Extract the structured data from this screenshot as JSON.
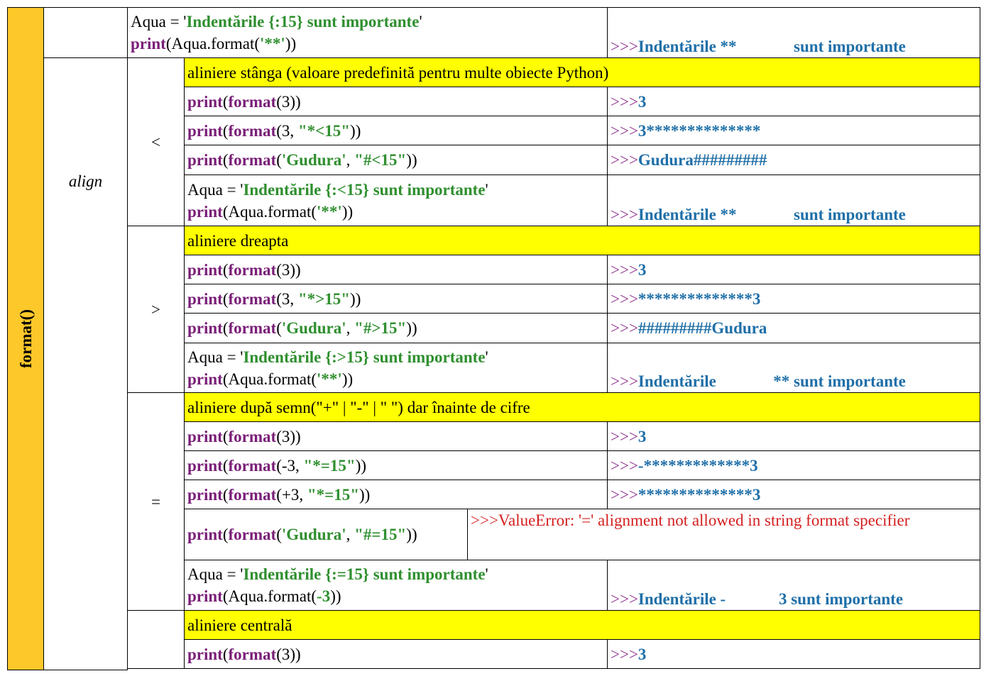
{
  "sidebar": "format()",
  "param": "align",
  "header_row": {
    "code": [
      [
        [
          "Aqua = '",
          "#000000",
          false
        ],
        [
          "Indentările {:15} sunt importante",
          "#2f8f2f",
          true
        ],
        [
          "'",
          "#000000",
          false
        ]
      ],
      [
        [
          "print",
          "#7a1e78",
          true
        ],
        [
          "(Aqua.format(",
          "#000000",
          false
        ],
        [
          "'**'",
          "#2f8f2f",
          true
        ],
        [
          "))",
          "#000000",
          false
        ]
      ]
    ],
    "output": [
      [
        [
          ">>>",
          "#8b2a8b",
          false
        ],
        [
          "Indentările **              sunt importante",
          "#1f6fa8",
          true
        ]
      ]
    ]
  },
  "groups": [
    {
      "symbol": "<",
      "caption": "aliniere stânga (valoare predefinită pentru multe obiecte Python)",
      "rows": [
        {
          "code": [
            [
              [
                "print",
                "#7a1e78",
                true
              ],
              [
                "(",
                "#000000",
                false
              ],
              [
                "format",
                "#7a1e78",
                true
              ],
              [
                "(3))",
                "#000000",
                false
              ]
            ]
          ],
          "output": [
            [
              [
                ">>>",
                "#8b2a8b",
                false
              ],
              [
                "3",
                "#1f6fa8",
                true
              ]
            ]
          ]
        },
        {
          "code": [
            [
              [
                "print",
                "#7a1e78",
                true
              ],
              [
                "(",
                "#000000",
                false
              ],
              [
                "format",
                "#7a1e78",
                true
              ],
              [
                "(3, ",
                "#000000",
                false
              ],
              [
                "\"*<15\"",
                "#2f8f2f",
                true
              ],
              [
                "))",
                "#000000",
                false
              ]
            ]
          ],
          "output": [
            [
              [
                ">>>",
                "#8b2a8b",
                false
              ],
              [
                "3**************",
                "#1f6fa8",
                true
              ]
            ]
          ]
        },
        {
          "code": [
            [
              [
                "print",
                "#7a1e78",
                true
              ],
              [
                "(",
                "#000000",
                false
              ],
              [
                "format",
                "#7a1e78",
                true
              ],
              [
                "(",
                "#000000",
                false
              ],
              [
                "'Gudura'",
                "#2f8f2f",
                true
              ],
              [
                ", ",
                "#000000",
                false
              ],
              [
                "\"#<15\"",
                "#2f8f2f",
                true
              ],
              [
                "))",
                "#000000",
                false
              ]
            ]
          ],
          "output": [
            [
              [
                ">>>",
                "#8b2a8b",
                false
              ],
              [
                "Gudura#########",
                "#1f6fa8",
                true
              ]
            ]
          ]
        },
        {
          "code": [
            [
              [
                "Aqua = '",
                "#000000",
                false
              ],
              [
                "Indentările {:<15} sunt importante",
                "#2f8f2f",
                true
              ],
              [
                "'",
                "#000000",
                false
              ]
            ],
            [
              [
                "print",
                "#7a1e78",
                true
              ],
              [
                "(Aqua.format(",
                "#000000",
                false
              ],
              [
                "'**'",
                "#2f8f2f",
                true
              ],
              [
                "))",
                "#000000",
                false
              ]
            ]
          ],
          "output": [
            [
              [
                ">>>",
                "#8b2a8b",
                false
              ],
              [
                "Indentările **              sunt importante",
                "#1f6fa8",
                true
              ]
            ]
          ]
        }
      ]
    },
    {
      "symbol": ">",
      "caption": "aliniere dreapta",
      "rows": [
        {
          "code": [
            [
              [
                "print",
                "#7a1e78",
                true
              ],
              [
                "(",
                "#000000",
                false
              ],
              [
                "format",
                "#7a1e78",
                true
              ],
              [
                "(3))",
                "#000000",
                false
              ]
            ]
          ],
          "output": [
            [
              [
                ">>>",
                "#8b2a8b",
                false
              ],
              [
                "3",
                "#1f6fa8",
                true
              ]
            ]
          ]
        },
        {
          "code": [
            [
              [
                "print",
                "#7a1e78",
                true
              ],
              [
                "(",
                "#000000",
                false
              ],
              [
                "format",
                "#7a1e78",
                true
              ],
              [
                "(3, ",
                "#000000",
                false
              ],
              [
                "\"*>15\"",
                "#2f8f2f",
                true
              ],
              [
                "))",
                "#000000",
                false
              ]
            ]
          ],
          "output": [
            [
              [
                ">>>",
                "#8b2a8b",
                false
              ],
              [
                "**************3",
                "#1f6fa8",
                true
              ]
            ]
          ]
        },
        {
          "code": [
            [
              [
                "print",
                "#7a1e78",
                true
              ],
              [
                "(",
                "#000000",
                false
              ],
              [
                "format",
                "#7a1e78",
                true
              ],
              [
                "(",
                "#000000",
                false
              ],
              [
                "'Gudura'",
                "#2f8f2f",
                true
              ],
              [
                ", ",
                "#000000",
                false
              ],
              [
                "\"#>15\"",
                "#2f8f2f",
                true
              ],
              [
                "))",
                "#000000",
                false
              ]
            ]
          ],
          "output": [
            [
              [
                ">>>",
                "#8b2a8b",
                false
              ],
              [
                "#########Gudura",
                "#1f6fa8",
                true
              ]
            ]
          ]
        },
        {
          "code": [
            [
              [
                "Aqua = '",
                "#000000",
                false
              ],
              [
                "Indentările {:>15} sunt importante",
                "#2f8f2f",
                true
              ],
              [
                "'",
                "#000000",
                false
              ]
            ],
            [
              [
                "print",
                "#7a1e78",
                true
              ],
              [
                "(Aqua.format(",
                "#000000",
                false
              ],
              [
                "'**'",
                "#2f8f2f",
                true
              ],
              [
                "))",
                "#000000",
                false
              ]
            ]
          ],
          "output": [
            [
              [
                ">>>",
                "#8b2a8b",
                false
              ],
              [
                "Indentările              ** sunt importante",
                "#1f6fa8",
                true
              ]
            ]
          ]
        }
      ]
    },
    {
      "symbol": "=",
      "caption": "aliniere după semn(\"+\" | \"-\" | \" \") dar înainte de cifre",
      "rows": [
        {
          "code": [
            [
              [
                "print",
                "#7a1e78",
                true
              ],
              [
                "(",
                "#000000",
                false
              ],
              [
                "format",
                "#7a1e78",
                true
              ],
              [
                "(3))",
                "#000000",
                false
              ]
            ]
          ],
          "output": [
            [
              [
                ">>>",
                "#8b2a8b",
                false
              ],
              [
                "3",
                "#1f6fa8",
                true
              ]
            ]
          ]
        },
        {
          "code": [
            [
              [
                "print",
                "#7a1e78",
                true
              ],
              [
                "(",
                "#000000",
                false
              ],
              [
                "format",
                "#7a1e78",
                true
              ],
              [
                "(-3, ",
                "#000000",
                false
              ],
              [
                "\"*=15\"",
                "#2f8f2f",
                true
              ],
              [
                "))",
                "#000000",
                false
              ]
            ]
          ],
          "output": [
            [
              [
                ">>>",
                "#8b2a8b",
                false
              ],
              [
                "-*************3",
                "#1f6fa8",
                true
              ]
            ]
          ]
        },
        {
          "code": [
            [
              [
                "print",
                "#7a1e78",
                true
              ],
              [
                "(",
                "#000000",
                false
              ],
              [
                "format",
                "#7a1e78",
                true
              ],
              [
                "(+3, ",
                "#000000",
                false
              ],
              [
                "\"*=15\"",
                "#2f8f2f",
                true
              ],
              [
                "))",
                "#000000",
                false
              ]
            ]
          ],
          "output": [
            [
              [
                ">>>",
                "#8b2a8b",
                false
              ],
              [
                "**************3",
                "#1f6fa8",
                true
              ]
            ]
          ]
        },
        {
          "code": [
            [
              [
                "print",
                "#7a1e78",
                true
              ],
              [
                "(",
                "#000000",
                false
              ],
              [
                "format",
                "#7a1e78",
                true
              ],
              [
                "(",
                "#000000",
                false
              ],
              [
                "'Gudura'",
                "#2f8f2f",
                true
              ],
              [
                ", ",
                "#000000",
                false
              ],
              [
                "\"#=15\"",
                "#2f8f2f",
                true
              ],
              [
                "))",
                "#000000",
                false
              ]
            ]
          ],
          "output": [
            [
              [
                ">>>",
                "#d42020",
                false
              ],
              [
                "ValueError: '=' alignment not allowed in string format specifier",
                "#d42020",
                false
              ]
            ]
          ]
        },
        {
          "code": [
            [
              [
                "Aqua = '",
                "#000000",
                false
              ],
              [
                "Indentările {:=15} sunt importante",
                "#2f8f2f",
                true
              ],
              [
                "'",
                "#000000",
                false
              ]
            ],
            [
              [
                "print",
                "#7a1e78",
                true
              ],
              [
                "(Aqua.format(",
                "#000000",
                false
              ],
              [
                "-3",
                "#2f8f2f",
                true
              ],
              [
                "))",
                "#000000",
                false
              ]
            ]
          ],
          "output": [
            [
              [
                ">>>",
                "#8b2a8b",
                false
              ],
              [
                "Indentările -             3 sunt importante",
                "#1f6fa8",
                true
              ]
            ]
          ]
        }
      ]
    },
    {
      "caption": "aliniere centrală",
      "rows": [
        {
          "code": [
            [
              [
                "print",
                "#7a1e78",
                true
              ],
              [
                "(",
                "#000000",
                false
              ],
              [
                "format",
                "#7a1e78",
                true
              ],
              [
                "(3))",
                "#000000",
                false
              ]
            ]
          ],
          "output": [
            [
              [
                ">>>",
                "#8b2a8b",
                false
              ],
              [
                "3",
                "#1f6fa8",
                true
              ]
            ]
          ]
        }
      ]
    }
  ]
}
